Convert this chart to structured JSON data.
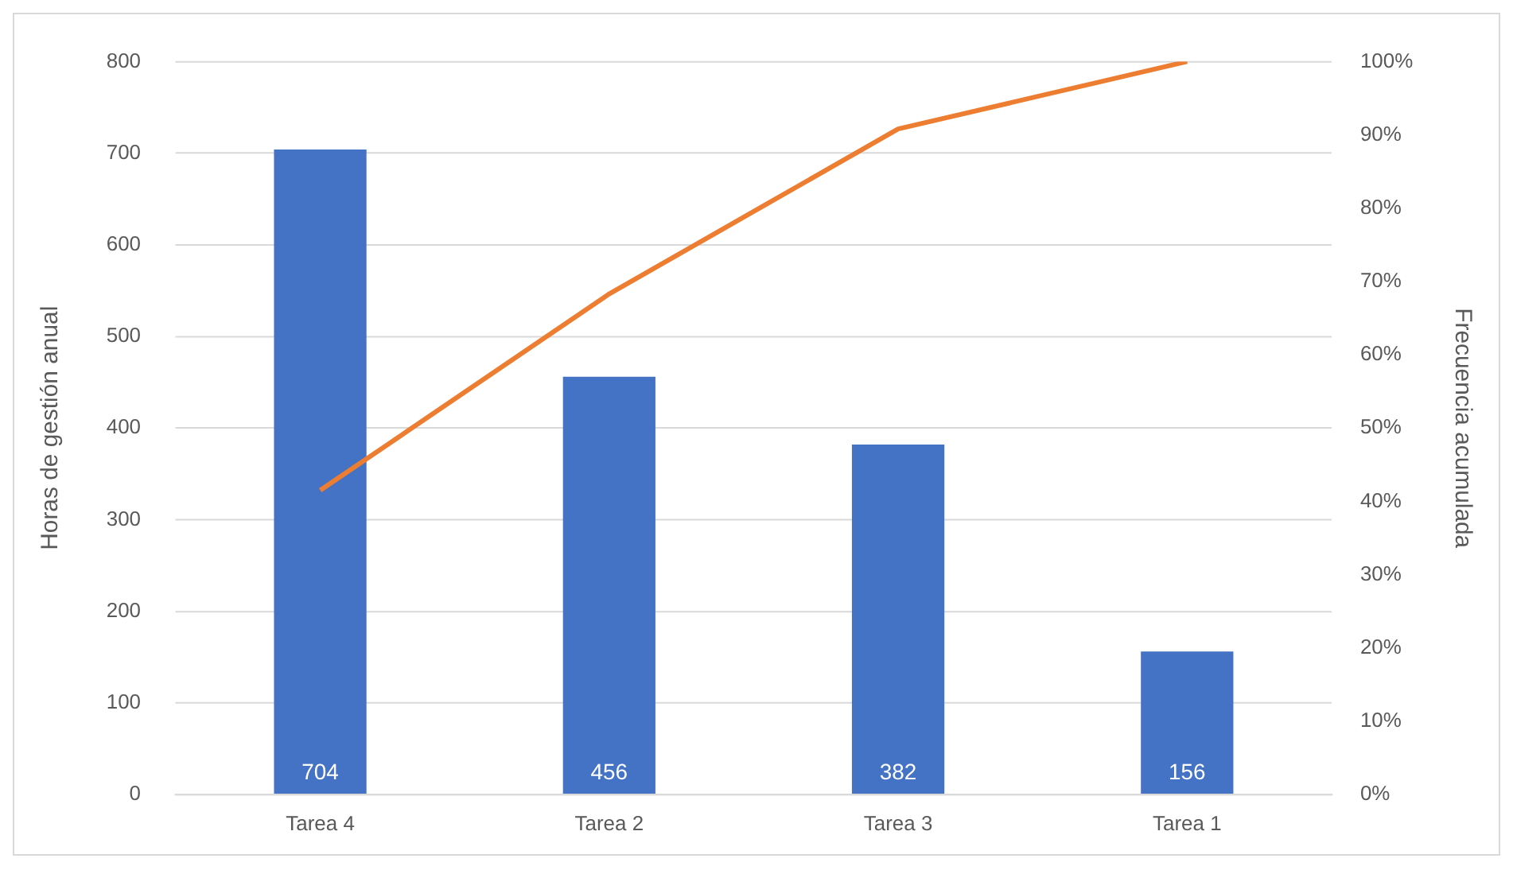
{
  "chart_data": {
    "type": "bar",
    "xlabel": null,
    "ylabel": "Horas de gestión anual",
    "y2label": "Frecuencia acumulada",
    "categories": [
      "Tarea 4",
      "Tarea 2",
      "Tarea 3",
      "Tarea 1"
    ],
    "series": [
      {
        "color": "#4472c4",
        "values": [
          704,
          456,
          382,
          156
        ],
        "value_labels": [
          "704",
          "456",
          "382",
          "156"
        ]
      },
      {
        "type": "line",
        "axis": "y2",
        "color": "#ed7d31",
        "values": [
          41.5,
          68.3,
          90.8,
          100
        ],
        "marker": "none"
      }
    ],
    "ylim": [
      0,
      800
    ],
    "yticks": [
      0,
      100,
      200,
      300,
      400,
      500,
      600,
      700,
      800
    ],
    "y2lim": [
      0,
      100
    ],
    "y2ticks": [
      {
        "value": 0,
        "label": "0%"
      },
      {
        "value": 10,
        "label": "10%"
      },
      {
        "value": 20,
        "label": "20%"
      },
      {
        "value": 30,
        "label": "30%"
      },
      {
        "value": 40,
        "label": "40%"
      },
      {
        "value": 50,
        "label": "50%"
      },
      {
        "value": 60,
        "label": "60%"
      },
      {
        "value": 70,
        "label": "70%"
      },
      {
        "value": 80,
        "label": "80%"
      },
      {
        "value": 90,
        "label": "90%"
      },
      {
        "value": 100,
        "label": "100%"
      }
    ],
    "grid": "y",
    "legend": false
  }
}
